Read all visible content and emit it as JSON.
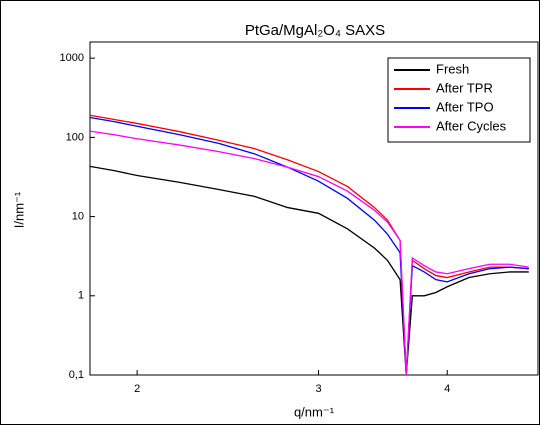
{
  "chart_data": {
    "type": "line",
    "title": "PtGa/MgAl₂O₄ SAXS",
    "xlabel": "q/nm⁻¹",
    "ylabel": "I/nm⁻¹",
    "xscale": "log",
    "yscale": "log",
    "x": [
      1.8,
      1.9,
      2.0,
      2.2,
      2.4,
      2.6,
      2.8,
      3.0,
      3.2,
      3.4,
      3.5,
      3.6,
      3.65,
      3.7,
      3.8,
      3.9,
      4.0,
      4.2,
      4.4,
      4.6,
      4.8
    ],
    "series": [
      {
        "name": "Fresh",
        "color": "#000000",
        "values": [
          43,
          38,
          33,
          27,
          22,
          18,
          13,
          11,
          7,
          4,
          2.8,
          1.6,
          0.1,
          1.0,
          1.0,
          1.1,
          1.3,
          1.7,
          1.9,
          2.0,
          2.0
        ]
      },
      {
        "name": "After TPR",
        "color": "#ff0000",
        "values": [
          190,
          168,
          150,
          118,
          92,
          72,
          52,
          37,
          24,
          13,
          9,
          5,
          0.1,
          2.8,
          2.2,
          1.8,
          1.7,
          2.0,
          2.3,
          2.3,
          2.2
        ]
      },
      {
        "name": "After TPO",
        "color": "#0000ff",
        "values": [
          178,
          158,
          138,
          108,
          84,
          62,
          42,
          28,
          17,
          9,
          6,
          3.5,
          0.1,
          2.4,
          2.0,
          1.6,
          1.5,
          1.9,
          2.2,
          2.3,
          2.2
        ]
      },
      {
        "name": "After Cycles",
        "color": "#ff00ff",
        "values": [
          120,
          108,
          96,
          80,
          66,
          54,
          42,
          32,
          21,
          12,
          8.5,
          5,
          0.1,
          3.0,
          2.4,
          2.0,
          1.9,
          2.2,
          2.5,
          2.5,
          2.3
        ]
      }
    ],
    "xlim": [
      1.8,
      4.9
    ],
    "xticks": [
      2,
      3,
      4
    ],
    "ylim": [
      0.1,
      1600
    ],
    "yticks": [
      {
        "value": 0.1,
        "label": "0,1"
      },
      1,
      10,
      100,
      1000
    ],
    "legend": "upper right"
  }
}
